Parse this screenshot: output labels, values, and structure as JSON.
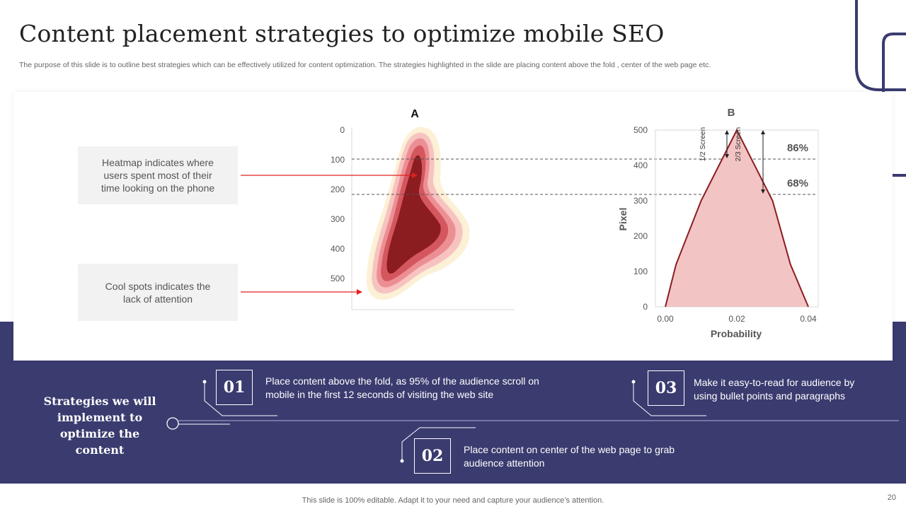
{
  "page": {
    "title": "Content placement strategies to optimize mobile SEO",
    "subtitle": "The purpose of this slide is to outline best strategies which can be effectively utilized for content optimization. The strategies highlighted in the slide are placing content above the fold ,  center of the web page etc.",
    "footer": "This slide is 100% editable. Adapt it to your need and capture your audience’s attention.",
    "page_number": "20"
  },
  "callouts": {
    "heatmap": "Heatmap indicates where users spent most of their time looking on the phone",
    "cool": "Cool spots indicates the lack of attention"
  },
  "chart_data": [
    {
      "type": "heatmap",
      "title": "A",
      "y_ticks": [
        "0",
        "100",
        "200",
        "300",
        "400",
        "500"
      ],
      "ylim": [
        0,
        500
      ],
      "y_inverted": true,
      "colors": [
        "#fcf0d6",
        "#f7c3c0",
        "#ec8f94",
        "#d4575f",
        "#8b1c1f"
      ]
    },
    {
      "type": "area",
      "title": "B",
      "xlabel": "Probability",
      "ylabel": "Pixel",
      "x_ticks": [
        "0.00",
        "0.02",
        "0.04"
      ],
      "y_ticks": [
        "0",
        "100",
        "200",
        "300",
        "400",
        "500"
      ],
      "xlim": [
        0,
        0.04
      ],
      "ylim": [
        0,
        500
      ],
      "x": [
        0.0,
        0.003,
        0.01,
        0.02,
        0.03,
        0.035,
        0.04
      ],
      "y": [
        0,
        120,
        300,
        500,
        300,
        120,
        0
      ],
      "fill": "#f2c4c4",
      "stroke": "#8b1c1f",
      "reference_lines": [
        {
          "y": 420,
          "label": "86%",
          "bracket_label": "1/2 Screen"
        },
        {
          "y": 320,
          "label": "68%",
          "bracket_label": "2/3 Screen"
        }
      ]
    }
  ],
  "strategies": {
    "lead": "Strategies we will implement to optimize the content",
    "items": [
      {
        "num": "01",
        "text": "Place content above the fold, as 95% of the audience scroll on mobile in the first 12 seconds of visiting the web site"
      },
      {
        "num": "02",
        "text": "Place content on center of the web page to grab audience attention"
      },
      {
        "num": "03",
        "text": "Make it easy-to-read for audience by using bullet points and paragraphs"
      }
    ]
  },
  "colors": {
    "band": "#3a3b6f",
    "accent_line": "#3a3b6f",
    "arrow": "#e02020"
  }
}
